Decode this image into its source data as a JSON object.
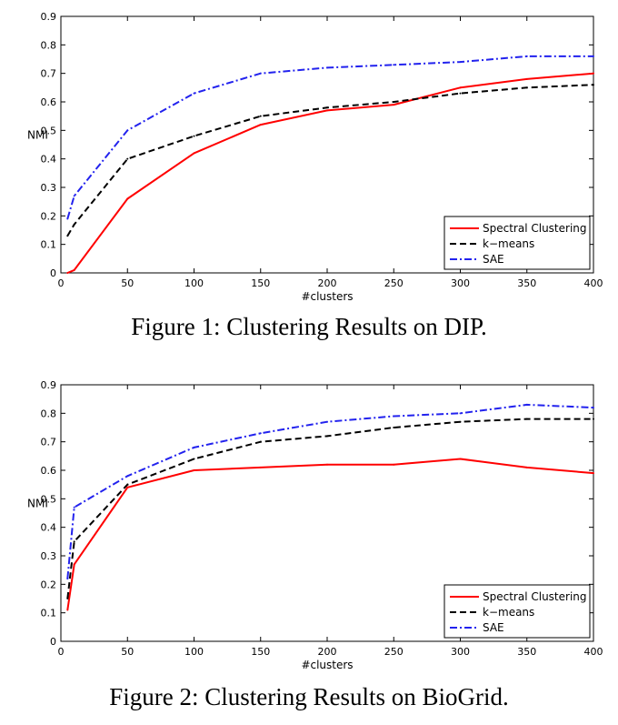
{
  "chart_data": [
    {
      "type": "line",
      "caption": "Figure 1: Clustering Results on DIP.",
      "xlabel": "#clusters",
      "ylabel": "NMI",
      "xlim": [
        0,
        400
      ],
      "ylim": [
        0,
        0.9
      ],
      "xticks": [
        0,
        50,
        100,
        150,
        200,
        250,
        300,
        350,
        400
      ],
      "yticks": [
        0,
        0.1,
        0.2,
        0.3,
        0.4,
        0.5,
        0.6,
        0.7,
        0.8,
        0.9
      ],
      "xtick_labels": [
        "0",
        "50",
        "100",
        "150",
        "200",
        "250",
        "300",
        "350",
        "400"
      ],
      "ytick_labels": [
        "0",
        "0.1",
        "0.2",
        "0.3",
        "0.4",
        "0.5",
        "0.6",
        "0.7",
        "0.8",
        "0.9"
      ],
      "legend_position": "bottom-right",
      "series": [
        {
          "name": "Spectral Clustering",
          "color": "#ff0000",
          "dash": "solid",
          "x": [
            5,
            10,
            50,
            100,
            150,
            200,
            250,
            300,
            350,
            400
          ],
          "y": [
            0.0,
            0.01,
            0.26,
            0.42,
            0.52,
            0.57,
            0.59,
            0.65,
            0.68,
            0.7
          ]
        },
        {
          "name": "k−means",
          "color": "#000000",
          "dash": "dashed",
          "x": [
            5,
            10,
            50,
            100,
            150,
            200,
            250,
            300,
            350,
            400
          ],
          "y": [
            0.13,
            0.17,
            0.4,
            0.48,
            0.55,
            0.58,
            0.6,
            0.63,
            0.65,
            0.66
          ]
        },
        {
          "name": "SAE",
          "color": "#2222ee",
          "dash": "dashdot",
          "x": [
            5,
            10,
            50,
            100,
            150,
            200,
            250,
            300,
            350,
            400
          ],
          "y": [
            0.19,
            0.27,
            0.5,
            0.63,
            0.7,
            0.72,
            0.73,
            0.74,
            0.76,
            0.76
          ]
        }
      ]
    },
    {
      "type": "line",
      "caption": "Figure 2: Clustering Results on BioGrid.",
      "xlabel": "#clusters",
      "ylabel": "NMI",
      "xlim": [
        0,
        400
      ],
      "ylim": [
        0,
        0.9
      ],
      "xticks": [
        0,
        50,
        100,
        150,
        200,
        250,
        300,
        350,
        400
      ],
      "yticks": [
        0,
        0.1,
        0.2,
        0.3,
        0.4,
        0.5,
        0.6,
        0.7,
        0.8,
        0.9
      ],
      "xtick_labels": [
        "0",
        "50",
        "100",
        "150",
        "200",
        "250",
        "300",
        "350",
        "400"
      ],
      "ytick_labels": [
        "0",
        "0.1",
        "0.2",
        "0.3",
        "0.4",
        "0.5",
        "0.6",
        "0.7",
        "0.8",
        "0.9"
      ],
      "legend_position": "bottom-right",
      "series": [
        {
          "name": "Spectral Clustering",
          "color": "#ff0000",
          "dash": "solid",
          "x": [
            5,
            10,
            50,
            100,
            150,
            200,
            250,
            300,
            350,
            400
          ],
          "y": [
            0.11,
            0.27,
            0.54,
            0.6,
            0.61,
            0.62,
            0.62,
            0.64,
            0.61,
            0.59
          ]
        },
        {
          "name": "k−means",
          "color": "#000000",
          "dash": "dashed",
          "x": [
            5,
            10,
            50,
            100,
            150,
            200,
            250,
            300,
            350,
            400
          ],
          "y": [
            0.15,
            0.35,
            0.55,
            0.64,
            0.7,
            0.72,
            0.75,
            0.77,
            0.78,
            0.78
          ]
        },
        {
          "name": "SAE",
          "color": "#2222ee",
          "dash": "dashdot",
          "x": [
            5,
            10,
            50,
            100,
            150,
            200,
            250,
            300,
            350,
            400
          ],
          "y": [
            0.22,
            0.47,
            0.58,
            0.68,
            0.73,
            0.77,
            0.79,
            0.8,
            0.83,
            0.82
          ]
        }
      ]
    }
  ]
}
